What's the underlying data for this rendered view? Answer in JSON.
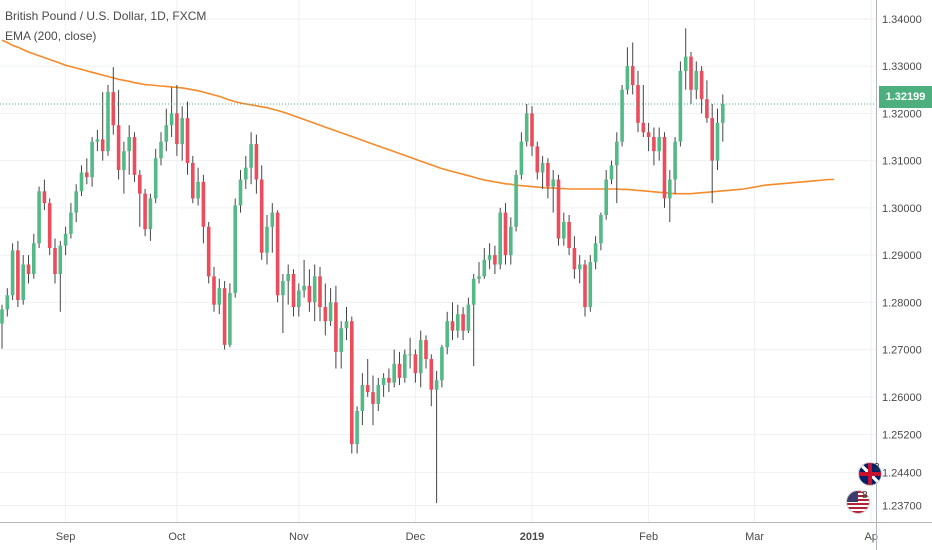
{
  "chart_data": {
    "type": "candlestick",
    "title": "British Pound / U.S. Dollar, 1D, FXCM",
    "indicator_label": "EMA (200, close)",
    "last_price_label": "1.32199",
    "last_price": 1.32199,
    "ylim": [
      1.2335,
      1.344
    ],
    "y_ticks": [
      "1.34000",
      "1.33000",
      "1.32000",
      "1.31000",
      "1.30000",
      "1.29000",
      "1.28000",
      "1.27000",
      "1.26000",
      "1.25200",
      "1.24400",
      "1.23700"
    ],
    "y_tick_values": [
      1.34,
      1.33,
      1.32,
      1.31,
      1.3,
      1.29,
      1.28,
      1.27,
      1.26,
      1.252,
      1.244,
      1.237
    ],
    "x_ticks": [
      {
        "label": "Sep",
        "index": 12,
        "bold": false
      },
      {
        "label": "Oct",
        "index": 33,
        "bold": false
      },
      {
        "label": "Nov",
        "index": 56,
        "bold": false
      },
      {
        "label": "Dec",
        "index": 78,
        "bold": false
      },
      {
        "label": "2019",
        "index": 100,
        "bold": true
      },
      {
        "label": "Feb",
        "index": 122,
        "bold": false
      },
      {
        "label": "Mar",
        "index": 142,
        "bold": false
      },
      {
        "label": "Ap",
        "index": 164,
        "bold": false
      }
    ],
    "candles": [
      {
        "o": 1.2755,
        "h": 1.2795,
        "l": 1.2702,
        "c": 1.2785
      },
      {
        "o": 1.2785,
        "h": 1.283,
        "l": 1.277,
        "c": 1.2815
      },
      {
        "o": 1.2815,
        "h": 1.2925,
        "l": 1.2805,
        "c": 1.291
      },
      {
        "o": 1.291,
        "h": 1.293,
        "l": 1.279,
        "c": 1.2805
      },
      {
        "o": 1.2805,
        "h": 1.29,
        "l": 1.2795,
        "c": 1.288
      },
      {
        "o": 1.288,
        "h": 1.29,
        "l": 1.284,
        "c": 1.286
      },
      {
        "o": 1.286,
        "h": 1.2945,
        "l": 1.285,
        "c": 1.2925
      },
      {
        "o": 1.2925,
        "h": 1.3045,
        "l": 1.2915,
        "c": 1.3035
      },
      {
        "o": 1.3035,
        "h": 1.306,
        "l": 1.2995,
        "c": 1.301
      },
      {
        "o": 1.301,
        "h": 1.302,
        "l": 1.29,
        "c": 1.2915
      },
      {
        "o": 1.2915,
        "h": 1.2935,
        "l": 1.284,
        "c": 1.286
      },
      {
        "o": 1.286,
        "h": 1.293,
        "l": 1.278,
        "c": 1.292
      },
      {
        "o": 1.292,
        "h": 1.296,
        "l": 1.29,
        "c": 1.2945
      },
      {
        "o": 1.2945,
        "h": 1.301,
        "l": 1.2935,
        "c": 1.299
      },
      {
        "o": 1.299,
        "h": 1.305,
        "l": 1.297,
        "c": 1.3035
      },
      {
        "o": 1.3035,
        "h": 1.309,
        "l": 1.3025,
        "c": 1.3075
      },
      {
        "o": 1.3075,
        "h": 1.3105,
        "l": 1.305,
        "c": 1.3065
      },
      {
        "o": 1.3065,
        "h": 1.315,
        "l": 1.3045,
        "c": 1.314
      },
      {
        "o": 1.314,
        "h": 1.3165,
        "l": 1.312,
        "c": 1.3145
      },
      {
        "o": 1.3145,
        "h": 1.3245,
        "l": 1.31,
        "c": 1.312
      },
      {
        "o": 1.312,
        "h": 1.326,
        "l": 1.311,
        "c": 1.3245
      },
      {
        "o": 1.3245,
        "h": 1.3298,
        "l": 1.3155,
        "c": 1.3175
      },
      {
        "o": 1.3175,
        "h": 1.325,
        "l": 1.306,
        "c": 1.308
      },
      {
        "o": 1.308,
        "h": 1.314,
        "l": 1.303,
        "c": 1.312
      },
      {
        "o": 1.312,
        "h": 1.3175,
        "l": 1.307,
        "c": 1.315
      },
      {
        "o": 1.315,
        "h": 1.316,
        "l": 1.3055,
        "c": 1.307
      },
      {
        "o": 1.307,
        "h": 1.308,
        "l": 1.296,
        "c": 1.303
      },
      {
        "o": 1.303,
        "h": 1.304,
        "l": 1.294,
        "c": 1.2955
      },
      {
        "o": 1.2955,
        "h": 1.303,
        "l": 1.293,
        "c": 1.302
      },
      {
        "o": 1.302,
        "h": 1.3125,
        "l": 1.301,
        "c": 1.3105
      },
      {
        "o": 1.3105,
        "h": 1.316,
        "l": 1.309,
        "c": 1.314
      },
      {
        "o": 1.314,
        "h": 1.321,
        "l": 1.312,
        "c": 1.3175
      },
      {
        "o": 1.3175,
        "h": 1.3255,
        "l": 1.315,
        "c": 1.32
      },
      {
        "o": 1.32,
        "h": 1.326,
        "l": 1.311,
        "c": 1.3135
      },
      {
        "o": 1.3135,
        "h": 1.3215,
        "l": 1.31,
        "c": 1.319
      },
      {
        "o": 1.319,
        "h": 1.3225,
        "l": 1.307,
        "c": 1.3095
      },
      {
        "o": 1.3095,
        "h": 1.311,
        "l": 1.301,
        "c": 1.302
      },
      {
        "o": 1.302,
        "h": 1.3085,
        "l": 1.3005,
        "c": 1.3055
      },
      {
        "o": 1.3055,
        "h": 1.307,
        "l": 1.2925,
        "c": 1.296
      },
      {
        "o": 1.296,
        "h": 1.297,
        "l": 1.284,
        "c": 1.2855
      },
      {
        "o": 1.2855,
        "h": 1.2875,
        "l": 1.278,
        "c": 1.2795
      },
      {
        "o": 1.2795,
        "h": 1.285,
        "l": 1.2775,
        "c": 1.283
      },
      {
        "o": 1.283,
        "h": 1.2845,
        "l": 1.27,
        "c": 1.271
      },
      {
        "o": 1.271,
        "h": 1.284,
        "l": 1.2705,
        "c": 1.282
      },
      {
        "o": 1.282,
        "h": 1.302,
        "l": 1.281,
        "c": 1.3005
      },
      {
        "o": 1.3005,
        "h": 1.308,
        "l": 1.299,
        "c": 1.306
      },
      {
        "o": 1.306,
        "h": 1.311,
        "l": 1.304,
        "c": 1.3085
      },
      {
        "o": 1.3085,
        "h": 1.316,
        "l": 1.305,
        "c": 1.3135
      },
      {
        "o": 1.3135,
        "h": 1.3155,
        "l": 1.303,
        "c": 1.306
      },
      {
        "o": 1.306,
        "h": 1.309,
        "l": 1.289,
        "c": 1.2905
      },
      {
        "o": 1.2905,
        "h": 1.2985,
        "l": 1.288,
        "c": 1.296
      },
      {
        "o": 1.296,
        "h": 1.301,
        "l": 1.2905,
        "c": 1.299
      },
      {
        "o": 1.299,
        "h": 1.2995,
        "l": 1.28,
        "c": 1.2815
      },
      {
        "o": 1.2815,
        "h": 1.286,
        "l": 1.2735,
        "c": 1.2845
      },
      {
        "o": 1.2845,
        "h": 1.288,
        "l": 1.2795,
        "c": 1.286
      },
      {
        "o": 1.286,
        "h": 1.287,
        "l": 1.277,
        "c": 1.279
      },
      {
        "o": 1.279,
        "h": 1.284,
        "l": 1.277,
        "c": 1.2825
      },
      {
        "o": 1.2825,
        "h": 1.289,
        "l": 1.281,
        "c": 1.2835
      },
      {
        "o": 1.2835,
        "h": 1.287,
        "l": 1.278,
        "c": 1.28
      },
      {
        "o": 1.28,
        "h": 1.288,
        "l": 1.276,
        "c": 1.2855
      },
      {
        "o": 1.2855,
        "h": 1.2875,
        "l": 1.276,
        "c": 1.279
      },
      {
        "o": 1.279,
        "h": 1.284,
        "l": 1.273,
        "c": 1.276
      },
      {
        "o": 1.276,
        "h": 1.283,
        "l": 1.275,
        "c": 1.28
      },
      {
        "o": 1.28,
        "h": 1.2835,
        "l": 1.266,
        "c": 1.2695
      },
      {
        "o": 1.2695,
        "h": 1.276,
        "l": 1.266,
        "c": 1.2745
      },
      {
        "o": 1.2745,
        "h": 1.279,
        "l": 1.272,
        "c": 1.276
      },
      {
        "o": 1.276,
        "h": 1.277,
        "l": 1.248,
        "c": 1.25
      },
      {
        "o": 1.25,
        "h": 1.258,
        "l": 1.248,
        "c": 1.257
      },
      {
        "o": 1.257,
        "h": 1.265,
        "l": 1.254,
        "c": 1.2625
      },
      {
        "o": 1.2625,
        "h": 1.268,
        "l": 1.26,
        "c": 1.261
      },
      {
        "o": 1.261,
        "h": 1.2645,
        "l": 1.254,
        "c": 1.2585
      },
      {
        "o": 1.2585,
        "h": 1.264,
        "l": 1.257,
        "c": 1.2625
      },
      {
        "o": 1.2625,
        "h": 1.265,
        "l": 1.26,
        "c": 1.264
      },
      {
        "o": 1.264,
        "h": 1.266,
        "l": 1.261,
        "c": 1.263
      },
      {
        "o": 1.263,
        "h": 1.27,
        "l": 1.262,
        "c": 1.267
      },
      {
        "o": 1.267,
        "h": 1.2695,
        "l": 1.2625,
        "c": 1.264
      },
      {
        "o": 1.264,
        "h": 1.27,
        "l": 1.263,
        "c": 1.269
      },
      {
        "o": 1.269,
        "h": 1.2725,
        "l": 1.266,
        "c": 1.269
      },
      {
        "o": 1.269,
        "h": 1.27,
        "l": 1.263,
        "c": 1.265
      },
      {
        "o": 1.265,
        "h": 1.274,
        "l": 1.262,
        "c": 1.272
      },
      {
        "o": 1.272,
        "h": 1.273,
        "l": 1.266,
        "c": 1.268
      },
      {
        "o": 1.268,
        "h": 1.269,
        "l": 1.258,
        "c": 1.2615
      },
      {
        "o": 1.2615,
        "h": 1.2655,
        "l": 1.2375,
        "c": 1.2635
      },
      {
        "o": 1.2635,
        "h": 1.271,
        "l": 1.262,
        "c": 1.2705
      },
      {
        "o": 1.2705,
        "h": 1.278,
        "l": 1.269,
        "c": 1.276
      },
      {
        "o": 1.276,
        "h": 1.28,
        "l": 1.272,
        "c": 1.274
      },
      {
        "o": 1.274,
        "h": 1.2795,
        "l": 1.2725,
        "c": 1.2775
      },
      {
        "o": 1.2775,
        "h": 1.279,
        "l": 1.272,
        "c": 1.274
      },
      {
        "o": 1.274,
        "h": 1.281,
        "l": 1.2735,
        "c": 1.2795
      },
      {
        "o": 1.2795,
        "h": 1.286,
        "l": 1.2665,
        "c": 1.285
      },
      {
        "o": 1.285,
        "h": 1.2885,
        "l": 1.284,
        "c": 1.2855
      },
      {
        "o": 1.2855,
        "h": 1.2915,
        "l": 1.285,
        "c": 1.289
      },
      {
        "o": 1.289,
        "h": 1.2925,
        "l": 1.287,
        "c": 1.29
      },
      {
        "o": 1.29,
        "h": 1.292,
        "l": 1.286,
        "c": 1.288
      },
      {
        "o": 1.288,
        "h": 1.3,
        "l": 1.287,
        "c": 1.299
      },
      {
        "o": 1.299,
        "h": 1.301,
        "l": 1.288,
        "c": 1.29
      },
      {
        "o": 1.29,
        "h": 1.298,
        "l": 1.288,
        "c": 1.296
      },
      {
        "o": 1.296,
        "h": 1.308,
        "l": 1.295,
        "c": 1.307
      },
      {
        "o": 1.307,
        "h": 1.316,
        "l": 1.306,
        "c": 1.314
      },
      {
        "o": 1.314,
        "h": 1.322,
        "l": 1.313,
        "c": 1.32
      },
      {
        "o": 1.32,
        "h": 1.3215,
        "l": 1.311,
        "c": 1.313
      },
      {
        "o": 1.313,
        "h": 1.314,
        "l": 1.306,
        "c": 1.3075
      },
      {
        "o": 1.3075,
        "h": 1.311,
        "l": 1.304,
        "c": 1.3095
      },
      {
        "o": 1.3095,
        "h": 1.3105,
        "l": 1.302,
        "c": 1.3045
      },
      {
        "o": 1.3045,
        "h": 1.308,
        "l": 1.299,
        "c": 1.306
      },
      {
        "o": 1.306,
        "h": 1.307,
        "l": 1.292,
        "c": 1.2935
      },
      {
        "o": 1.2935,
        "h": 1.299,
        "l": 1.292,
        "c": 1.297
      },
      {
        "o": 1.297,
        "h": 1.2985,
        "l": 1.29,
        "c": 1.2915
      },
      {
        "o": 1.2915,
        "h": 1.294,
        "l": 1.285,
        "c": 1.287
      },
      {
        "o": 1.287,
        "h": 1.29,
        "l": 1.284,
        "c": 1.288
      },
      {
        "o": 1.288,
        "h": 1.289,
        "l": 1.277,
        "c": 1.279
      },
      {
        "o": 1.279,
        "h": 1.29,
        "l": 1.278,
        "c": 1.2885
      },
      {
        "o": 1.2885,
        "h": 1.294,
        "l": 1.287,
        "c": 1.2925
      },
      {
        "o": 1.2925,
        "h": 1.299,
        "l": 1.291,
        "c": 1.2985
      },
      {
        "o": 1.2985,
        "h": 1.308,
        "l": 1.2975,
        "c": 1.306
      },
      {
        "o": 1.306,
        "h": 1.31,
        "l": 1.305,
        "c": 1.309
      },
      {
        "o": 1.309,
        "h": 1.316,
        "l": 1.301,
        "c": 1.314
      },
      {
        "o": 1.314,
        "h": 1.326,
        "l": 1.313,
        "c": 1.325
      },
      {
        "o": 1.325,
        "h": 1.334,
        "l": 1.324,
        "c": 1.33
      },
      {
        "o": 1.33,
        "h": 1.335,
        "l": 1.324,
        "c": 1.326
      },
      {
        "o": 1.326,
        "h": 1.329,
        "l": 1.316,
        "c": 1.318
      },
      {
        "o": 1.318,
        "h": 1.326,
        "l": 1.315,
        "c": 1.316
      },
      {
        "o": 1.316,
        "h": 1.318,
        "l": 1.312,
        "c": 1.315
      },
      {
        "o": 1.315,
        "h": 1.317,
        "l": 1.309,
        "c": 1.312
      },
      {
        "o": 1.312,
        "h": 1.317,
        "l": 1.31,
        "c": 1.315
      },
      {
        "o": 1.315,
        "h": 1.316,
        "l": 1.3,
        "c": 1.302
      },
      {
        "o": 1.302,
        "h": 1.308,
        "l": 1.297,
        "c": 1.306
      },
      {
        "o": 1.306,
        "h": 1.315,
        "l": 1.303,
        "c": 1.314
      },
      {
        "o": 1.314,
        "h": 1.331,
        "l": 1.313,
        "c": 1.329
      },
      {
        "o": 1.329,
        "h": 1.338,
        "l": 1.325,
        "c": 1.332
      },
      {
        "o": 1.332,
        "h": 1.333,
        "l": 1.322,
        "c": 1.325
      },
      {
        "o": 1.325,
        "h": 1.331,
        "l": 1.323,
        "c": 1.329
      },
      {
        "o": 1.329,
        "h": 1.33,
        "l": 1.32,
        "c": 1.323
      },
      {
        "o": 1.323,
        "h": 1.327,
        "l": 1.318,
        "c": 1.319
      },
      {
        "o": 1.319,
        "h": 1.322,
        "l": 1.301,
        "c": 1.31
      },
      {
        "o": 1.31,
        "h": 1.321,
        "l": 1.308,
        "c": 1.318
      },
      {
        "o": 1.318,
        "h": 1.324,
        "l": 1.314,
        "c": 1.322
      }
    ],
    "ema200": [
      1.3355,
      1.335,
      1.3344,
      1.334,
      1.3335,
      1.333,
      1.3326,
      1.3322,
      1.3318,
      1.3314,
      1.331,
      1.3306,
      1.3302,
      1.3299,
      1.3296,
      1.3293,
      1.329,
      1.3287,
      1.3284,
      1.3281,
      1.3278,
      1.3275,
      1.3272,
      1.327,
      1.3268,
      1.3265,
      1.3263,
      1.3261,
      1.326,
      1.3259,
      1.3258,
      1.3257,
      1.3256,
      1.3255,
      1.3254,
      1.3252,
      1.325,
      1.3248,
      1.3245,
      1.3242,
      1.3239,
      1.3236,
      1.3232,
      1.3228,
      1.3225,
      1.3222,
      1.322,
      1.3218,
      1.3216,
      1.3214,
      1.3212,
      1.3209,
      1.3206,
      1.3203,
      1.3199,
      1.3195,
      1.3191,
      1.3187,
      1.3183,
      1.3179,
      1.3175,
      1.3171,
      1.3167,
      1.3163,
      1.3159,
      1.3155,
      1.3151,
      1.3147,
      1.3143,
      1.3139,
      1.3135,
      1.3131,
      1.3127,
      1.3123,
      1.3119,
      1.3115,
      1.3111,
      1.3107,
      1.3103,
      1.3099,
      1.3095,
      1.3091,
      1.3087,
      1.3083,
      1.308,
      1.3077,
      1.3074,
      1.3071,
      1.3068,
      1.3065,
      1.3062,
      1.3059,
      1.3057,
      1.3055,
      1.3053,
      1.3051,
      1.305,
      1.3048,
      1.3047,
      1.3046,
      1.3045,
      1.3044,
      1.3043,
      1.3042,
      1.3042,
      1.3041,
      1.3041,
      1.304,
      1.304,
      1.304,
      1.304,
      1.304,
      1.304,
      1.304,
      1.304,
      1.304,
      1.304,
      1.3039,
      1.3039,
      1.3038,
      1.3037,
      1.3036,
      1.3035,
      1.3034,
      1.3033,
      1.3032,
      1.3031,
      1.303,
      1.303,
      1.303,
      1.303,
      1.3031,
      1.3032,
      1.3033,
      1.3034,
      1.3035,
      1.3036,
      1.3037,
      1.3038,
      1.3039,
      1.304,
      1.3042,
      1.3044,
      1.3046,
      1.3048,
      1.3049,
      1.305,
      1.3051,
      1.3052,
      1.3053,
      1.3054,
      1.3055,
      1.3056,
      1.3057,
      1.3058,
      1.3059,
      1.306,
      1.306
    ],
    "colors": {
      "up": "#53b987",
      "down": "#eb4d5c",
      "ema": "#f58a2a",
      "grid": "#eef0f3",
      "axis_text": "#4a4a4a",
      "last_price_line": "#4caf7d"
    },
    "grid": true,
    "legend_position": "top-left"
  },
  "flags": {
    "gb_label": "2",
    "us_label": "8"
  }
}
